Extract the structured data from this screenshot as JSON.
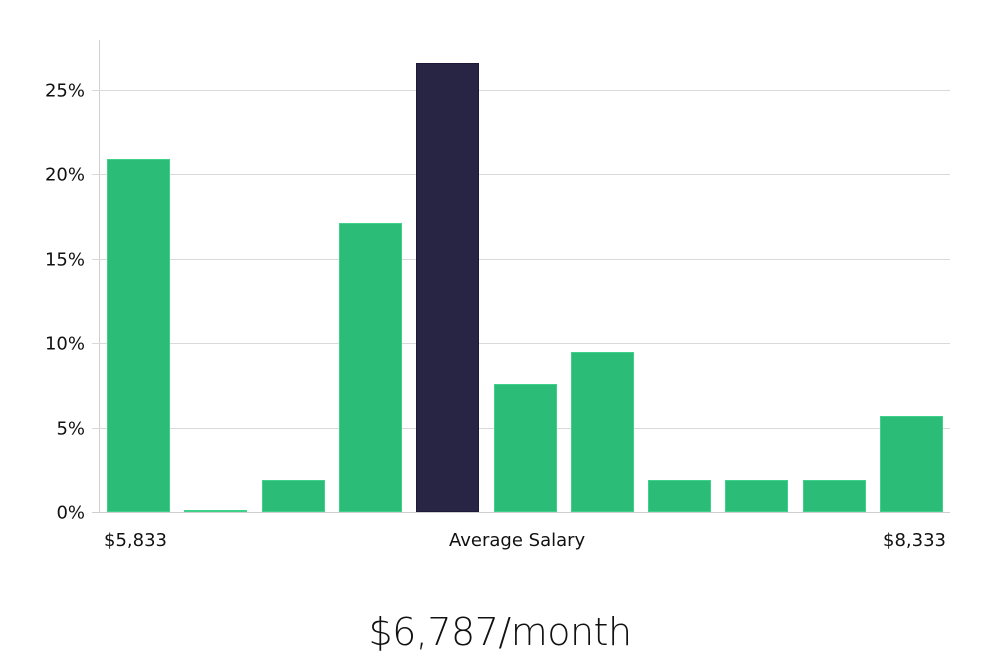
{
  "chart_data": {
    "type": "bar",
    "title": "",
    "xlabel": "Average Salary",
    "ylabel": "",
    "ylim": [
      0,
      28
    ],
    "yticks": [
      "0%",
      "5%",
      "10%",
      "15%",
      "20%",
      "25%"
    ],
    "ytick_values": [
      0,
      5,
      10,
      15,
      20,
      25
    ],
    "x_range_labels": {
      "min": "$5,833",
      "max": "$8,333"
    },
    "categories": [
      "bin1",
      "bin2",
      "bin3",
      "bin4",
      "bin5",
      "bin6",
      "bin7",
      "bin8",
      "bin9",
      "bin10",
      "bin11"
    ],
    "values": [
      20.9,
      0.1,
      1.9,
      17.1,
      26.6,
      7.6,
      9.5,
      1.9,
      1.9,
      1.9,
      5.7
    ],
    "highlight_index": 4,
    "colors": {
      "bar": "#2bbd77",
      "highlight": "#272444",
      "grid": "#d9d9d9"
    },
    "grid": true,
    "legend": null
  },
  "summary": {
    "salary_text": "$6,787/month"
  }
}
